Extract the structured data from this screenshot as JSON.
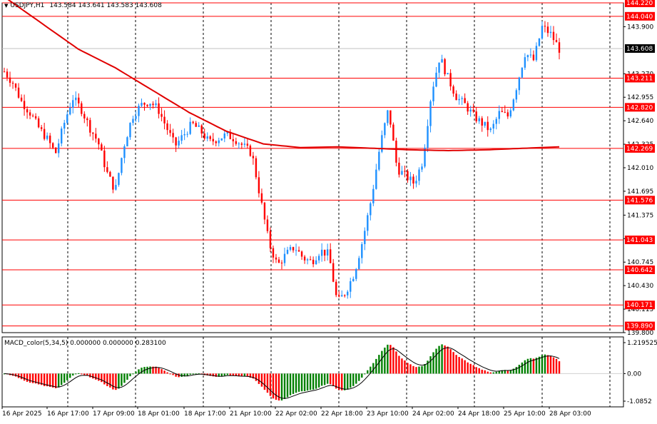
{
  "header": {
    "dropdown_glyph": "▼",
    "symbol": "USDJPY,H1",
    "ohlc": "143.584 143.641 143.583 143.608"
  },
  "chart_data": {
    "type": "candlestick",
    "colors": {
      "bull": "#1e90ff",
      "bear": "#ff0000",
      "ma": "#e00000",
      "level_line": "#ff0000",
      "grid": "#000000",
      "price_tag_bg": "#ff0000",
      "current_tag_bg": "#000000"
    },
    "price_ylim": [
      139.8,
      144.22
    ],
    "price_ticks": [
      "143.900",
      "143.270",
      "142.955",
      "142.640",
      "142.325",
      "142.010",
      "141.695",
      "141.375",
      "141.060",
      "140.745",
      "140.430",
      "140.115",
      "139.800"
    ],
    "level_lines": [
      144.22,
      144.04,
      143.211,
      142.82,
      142.269,
      141.576,
      141.043,
      140.642,
      140.171,
      139.89
    ],
    "level_tags": [
      "144.220",
      "144.040",
      "143.211",
      "142.820",
      "142.269",
      "141.576",
      "141.043",
      "140.642",
      "140.171",
      "139.890"
    ],
    "current_price": 143.608,
    "current_tag": "143.608",
    "x_labels": [
      "16 Apr 2025",
      "16 Apr 17:00",
      "17 Apr 09:00",
      "18 Apr 01:00",
      "18 Apr 17:00",
      "21 Apr 10:00",
      "22 Apr 02:00",
      "22 Apr 18:00",
      "23 Apr 10:00",
      "24 Apr 02:00",
      "24 Apr 18:00",
      "25 Apr 10:00",
      "28 Apr 03:00"
    ],
    "price_path": [
      143.3,
      143.15,
      142.9,
      142.75,
      142.55,
      142.4,
      142.2,
      142.6,
      142.95,
      142.8,
      142.55,
      142.35,
      141.95,
      141.7,
      142.3,
      142.7,
      142.85,
      142.9,
      142.8,
      142.55,
      142.3,
      142.45,
      142.6,
      142.5,
      142.35,
      142.4,
      142.45,
      142.4,
      142.3,
      142.2,
      141.6,
      141.0,
      140.7,
      140.85,
      140.95,
      140.8,
      140.75,
      140.9,
      140.85,
      140.2,
      140.35,
      140.6,
      141.05,
      141.6,
      142.3,
      142.8,
      142.0,
      141.9,
      141.8,
      142.1,
      143.0,
      143.5,
      143.2,
      142.95,
      142.85,
      142.7,
      142.6,
      142.5,
      142.75,
      142.7,
      143.1,
      143.55,
      143.45,
      143.9,
      143.8,
      143.6
    ],
    "ma_path": [
      144.3,
      143.95,
      143.6,
      143.35,
      143.05,
      142.75,
      142.5,
      142.33,
      142.28,
      142.29,
      142.27,
      142.25,
      142.24,
      142.25,
      142.27,
      142.29
    ],
    "macd": {
      "label": "MACD_color(5,34,5) 0.000000 0.000000 0.283100",
      "ticks": [
        "1.219525",
        "0.00",
        "-1.0852"
      ],
      "ylim": [
        -1.0852,
        1.2195
      ],
      "bull": "#008000",
      "bear": "#ff0000",
      "signal": "#000000"
    }
  }
}
